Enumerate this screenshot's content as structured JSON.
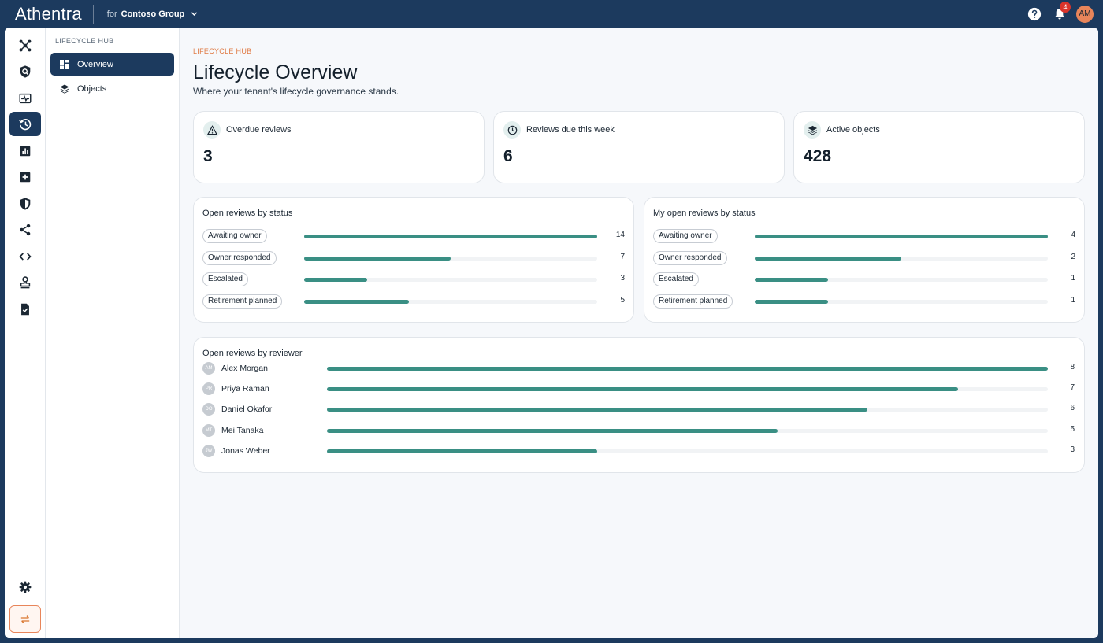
{
  "app": {
    "brand": "Athentra",
    "tenant_prefix": "for",
    "tenant_name": "Contoso Group",
    "notifications": "4",
    "user_initials": "AM"
  },
  "colors": {
    "navy": "#1c3a5e",
    "accent": "#e07b45",
    "bar": "#3a8f84",
    "badge": "#d9342b"
  },
  "rail": {
    "items": [
      {
        "icon": "hub-network-icon"
      },
      {
        "icon": "shield-search-icon"
      },
      {
        "icon": "activity-monitor-icon"
      },
      {
        "icon": "lifecycle-history-icon",
        "active": true
      },
      {
        "icon": "bar-chart-icon"
      },
      {
        "icon": "add-box-icon"
      },
      {
        "icon": "security-shield-icon"
      },
      {
        "icon": "share-icon"
      },
      {
        "icon": "code-icon"
      },
      {
        "icon": "stamp-icon"
      },
      {
        "icon": "document-check-icon"
      }
    ],
    "bottom": [
      {
        "icon": "settings-gear-icon"
      },
      {
        "icon": "switch-arrows-icon"
      }
    ]
  },
  "subnav": {
    "title": "LIFECYCLE HUB",
    "items": [
      {
        "label": "Overview",
        "icon": "dashboard-grid-icon",
        "active": true
      },
      {
        "label": "Objects",
        "icon": "layers-icon"
      }
    ]
  },
  "page": {
    "eyebrow": "LIFECYCLE HUB",
    "title": "Lifecycle Overview",
    "subtitle": "Where your tenant's lifecycle governance stands."
  },
  "stats": [
    {
      "label": "Overdue reviews",
      "value": "3",
      "icon": "warning-triangle-icon"
    },
    {
      "label": "Reviews due this week",
      "value": "6",
      "icon": "clock-icon"
    },
    {
      "label": "Active objects",
      "value": "428",
      "icon": "layers-icon"
    }
  ],
  "open_by_status": {
    "title": "Open reviews by status",
    "max": 14,
    "rows": [
      {
        "label": "Awaiting owner",
        "value": 14
      },
      {
        "label": "Owner responded",
        "value": 7
      },
      {
        "label": "Escalated",
        "value": 3
      },
      {
        "label": "Retirement planned",
        "value": 5
      }
    ]
  },
  "my_open_by_status": {
    "title": "My open reviews by status",
    "max": 4,
    "rows": [
      {
        "label": "Awaiting owner",
        "value": 4
      },
      {
        "label": "Owner responded",
        "value": 2
      },
      {
        "label": "Escalated",
        "value": 1
      },
      {
        "label": "Retirement planned",
        "value": 1
      }
    ]
  },
  "by_reviewer": {
    "title": "Open reviews by reviewer",
    "max": 8,
    "rows": [
      {
        "initials": "AM",
        "name": "Alex Morgan",
        "value": 8
      },
      {
        "initials": "PR",
        "name": "Priya Raman",
        "value": 7
      },
      {
        "initials": "DO",
        "name": "Daniel Okafor",
        "value": 6
      },
      {
        "initials": "MT",
        "name": "Mei Tanaka",
        "value": 5
      },
      {
        "initials": "JW",
        "name": "Jonas Weber",
        "value": 3
      }
    ]
  }
}
